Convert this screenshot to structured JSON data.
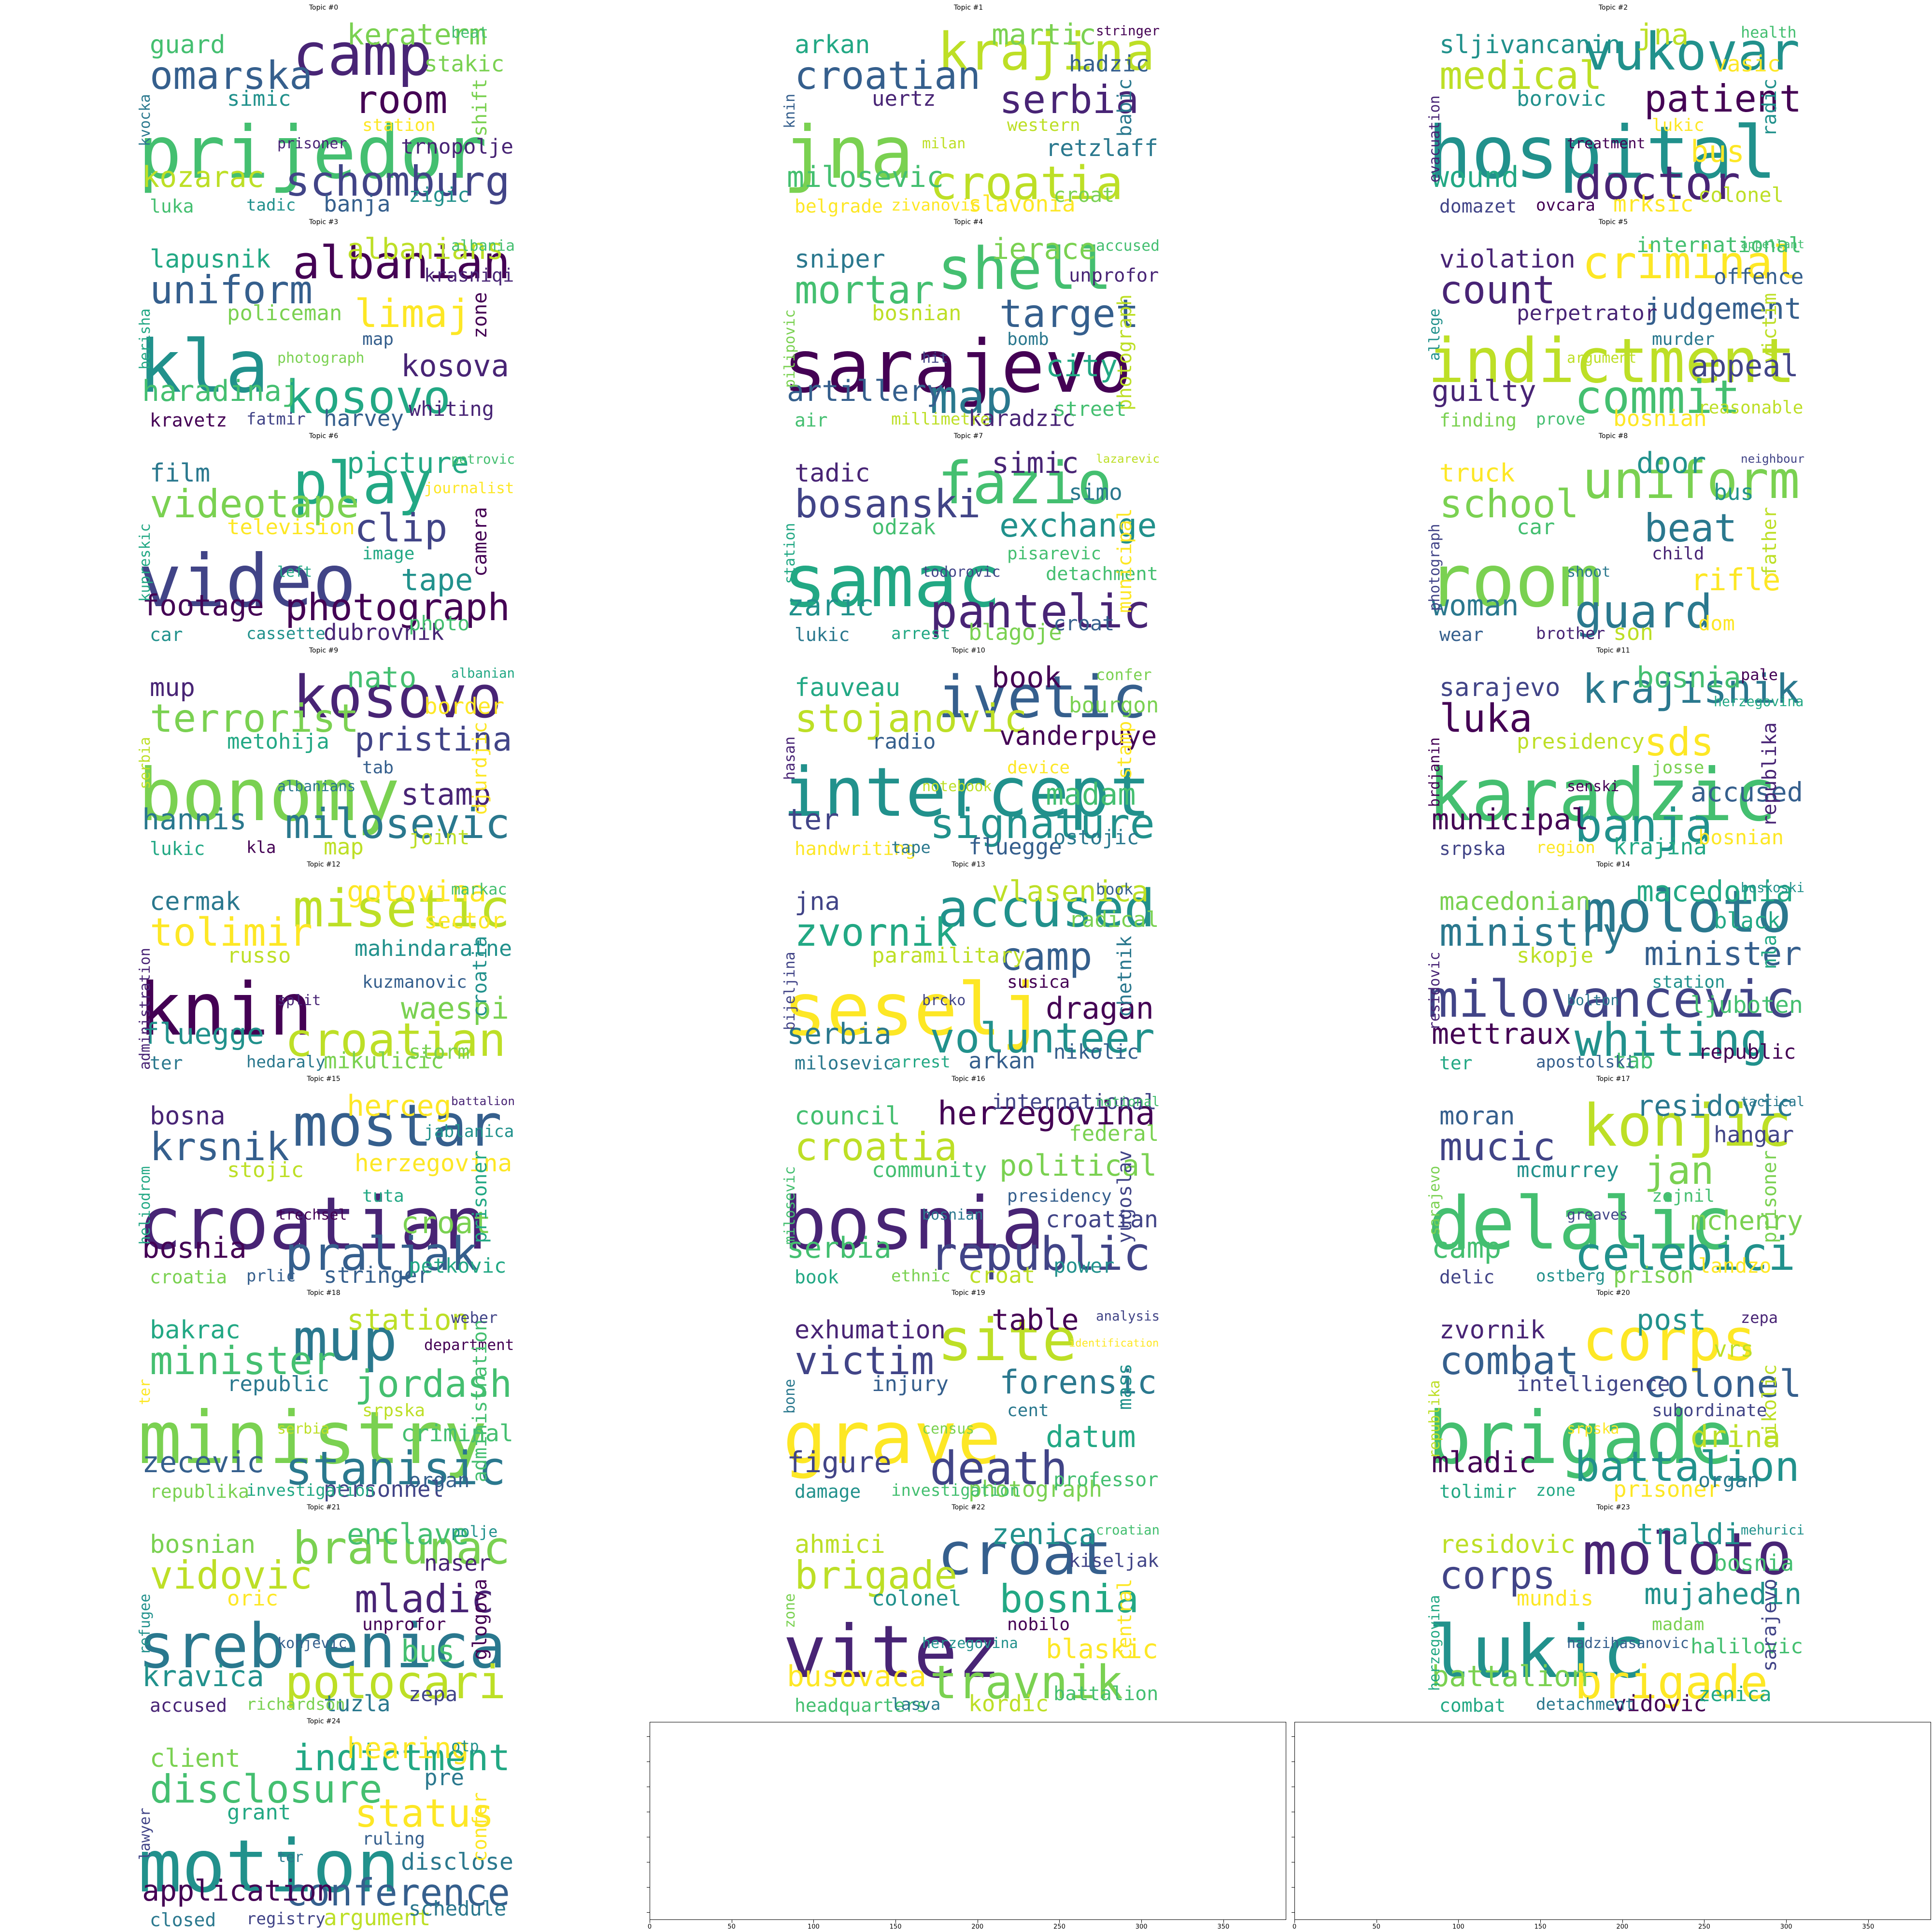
{
  "topics": [
    {
      "title": "Topic #0",
      "words": [
        "prijedor",
        "camp",
        "schomburg",
        "omarska",
        "room",
        "kozarac",
        "keraterm",
        "trnopolje",
        "guard",
        "stakic",
        "banja",
        "simic",
        "shift",
        "zigic",
        "luka",
        "station",
        "tadic",
        "kvocka",
        "beat",
        "prisoner"
      ]
    },
    {
      "title": "Topic #1",
      "words": [
        "jna",
        "krajina",
        "croatia",
        "croatian",
        "serbia",
        "milosevic",
        "martic",
        "retzlaff",
        "arkan",
        "hadzic",
        "slavonia",
        "uertz",
        "babic",
        "croat",
        "belgrade",
        "western",
        "zivanovic",
        "knin",
        "stringer",
        "milan"
      ]
    },
    {
      "title": "Topic #2",
      "words": [
        "hospital",
        "vukovar",
        "doctor",
        "medical",
        "patient",
        "wound",
        "jna",
        "bus",
        "sljivancanin",
        "vasic",
        "mrksic",
        "borovic",
        "radic",
        "colonel",
        "domazet",
        "lukic",
        "ovcara",
        "evacuation",
        "health",
        "treatment"
      ]
    },
    {
      "title": "Topic #3",
      "words": [
        "kla",
        "albanian",
        "kosovo",
        "uniform",
        "limaj",
        "haradinaj",
        "albanians",
        "kosova",
        "lapusnik",
        "krasniqi",
        "harvey",
        "policeman",
        "zone",
        "whiting",
        "kravetz",
        "map",
        "fatmir",
        "berisha",
        "albania",
        "photograph"
      ]
    },
    {
      "title": "Topic #4",
      "words": [
        "sarajevo",
        "shell",
        "map",
        "mortar",
        "target",
        "artillery",
        "ierace",
        "city",
        "sniper",
        "unprofor",
        "karadzic",
        "bosnian",
        "photograph",
        "street",
        "air",
        "bomb",
        "millimetre",
        "pilipovic",
        "accused",
        "hit"
      ]
    },
    {
      "title": "Topic #5",
      "words": [
        "indictment",
        "criminal",
        "commit",
        "count",
        "judgement",
        "guilty",
        "international",
        "appeal",
        "violation",
        "offence",
        "bosnian",
        "perpetrator",
        "victim",
        "reasonable",
        "finding",
        "murder",
        "prove",
        "allege",
        "appellant",
        "argument"
      ]
    },
    {
      "title": "Topic #6",
      "words": [
        "video",
        "play",
        "photograph",
        "videotape",
        "clip",
        "footage",
        "picture",
        "tape",
        "film",
        "journalist",
        "dubrovnik",
        "television",
        "camera",
        "photo",
        "car",
        "image",
        "cassette",
        "kupreskic",
        "petrovic",
        "left"
      ]
    },
    {
      "title": "Topic #7",
      "words": [
        "samac",
        "fazio",
        "pantelic",
        "bosanski",
        "exchange",
        "zaric",
        "simic",
        "detachment",
        "tadic",
        "simo",
        "blagoje",
        "odzak",
        "municipal",
        "croat",
        "lukic",
        "pisarevic",
        "arrest",
        "station",
        "lazarevic",
        "todorovic"
      ]
    },
    {
      "title": "Topic #8",
      "words": [
        "room",
        "uniform",
        "guard",
        "school",
        "beat",
        "woman",
        "door",
        "rifle",
        "truck",
        "bus",
        "son",
        "car",
        "father",
        "dom",
        "wear",
        "child",
        "brother",
        "photograph",
        "neighbour",
        "shoot"
      ]
    },
    {
      "title": "Topic #9",
      "words": [
        "bonomy",
        "kosovo",
        "milosevic",
        "terrorist",
        "pristina",
        "hannis",
        "nato",
        "stamp",
        "mup",
        "border",
        "map",
        "metohija",
        "djurdjic",
        "joint",
        "lukic",
        "tab",
        "kla",
        "serbia",
        "albanian",
        "albanians"
      ]
    },
    {
      "title": "Topic #10",
      "words": [
        "intercept",
        "ivetic",
        "signature",
        "stojanovic",
        "vanderpuye",
        "ter",
        "book",
        "madam",
        "fauveau",
        "bourgon",
        "fluegge",
        "radio",
        "stamp",
        "ostojic",
        "handwriting",
        "device",
        "tape",
        "hasan",
        "confer",
        "notebook"
      ]
    },
    {
      "title": "Topic #11",
      "words": [
        "karadzic",
        "krajisnik",
        "banja",
        "luka",
        "sds",
        "municipal",
        "bosnia",
        "accused",
        "sarajevo",
        "herzegovina",
        "krajina",
        "presidency",
        "republika",
        "bosnian",
        "srpska",
        "josse",
        "region",
        "brdjanin",
        "pale",
        "senski"
      ]
    },
    {
      "title": "Topic #12",
      "words": [
        "knin",
        "misetic",
        "croatian",
        "tolimir",
        "mahindaratne",
        "fluegge",
        "gotovina",
        "waespi",
        "cermak",
        "sector",
        "mikulicic",
        "russo",
        "croatia",
        "storm",
        "ter",
        "kuzmanovic",
        "hedaraly",
        "administration",
        "markac",
        "split"
      ]
    },
    {
      "title": "Topic #13",
      "words": [
        "seselj",
        "accused",
        "volunteer",
        "zvornik",
        "camp",
        "serbia",
        "vlasenica",
        "dragan",
        "jna",
        "radical",
        "arkan",
        "paramilitary",
        "chetnik",
        "nikolic",
        "milosevic",
        "susica",
        "arrest",
        "bijeljina",
        "book",
        "brcko"
      ]
    },
    {
      "title": "Topic #14",
      "words": [
        "milovancevic",
        "moloto",
        "whiting",
        "ministry",
        "minister",
        "mettraux",
        "macedonia",
        "ljuboten",
        "macedonian",
        "black",
        "tab",
        "skopje",
        "nla",
        "republic",
        "ter",
        "station",
        "apostolski",
        "residovic",
        "boskoski",
        "bolton"
      ]
    },
    {
      "title": "Topic #15",
      "words": [
        "croatian",
        "mostar",
        "praljak",
        "krsnik",
        "herzegovina",
        "bosnia",
        "herceg",
        "croat",
        "bosna",
        "jablanica",
        "stringer",
        "stojic",
        "prisoner",
        "petkovic",
        "croatia",
        "tuta",
        "prlic",
        "heliodrom",
        "battalion",
        "trechsel"
      ]
    },
    {
      "title": "Topic #16",
      "words": [
        "bosnia",
        "herzegovina",
        "republic",
        "croatia",
        "political",
        "serbia",
        "international",
        "croatian",
        "council",
        "federal",
        "croat",
        "community",
        "yugoslav",
        "power",
        "book",
        "presidency",
        "ethnic",
        "milosevic",
        "national",
        "bosnian"
      ]
    },
    {
      "title": "Topic #17",
      "words": [
        "delalic",
        "konjic",
        "celebici",
        "mucic",
        "jan",
        "camp",
        "residovic",
        "mchenry",
        "moran",
        "hangar",
        "prison",
        "mcmurrey",
        "prisoner",
        "landzo",
        "delic",
        "zejnil",
        "ostberg",
        "sarajevo",
        "tactical",
        "greaves"
      ]
    },
    {
      "title": "Topic #18",
      "words": [
        "ministry",
        "mup",
        "stanisic",
        "minister",
        "jordash",
        "zecevic",
        "station",
        "criminal",
        "bakrac",
        "department",
        "personnel",
        "republic",
        "administration",
        "organ",
        "republika",
        "srpska",
        "investigation",
        "ter",
        "weber",
        "serbia"
      ]
    },
    {
      "title": "Topic #19",
      "words": [
        "grave",
        "site",
        "death",
        "victim",
        "forensic",
        "figure",
        "table",
        "datum",
        "exhumation",
        "identification",
        "photograph",
        "injury",
        "mass",
        "professor",
        "damage",
        "cent",
        "investigation",
        "bone",
        "analysis",
        "census"
      ]
    },
    {
      "title": "Topic #20",
      "words": [
        "brigade",
        "corps",
        "battalion",
        "combat",
        "colonel",
        "mladic",
        "post",
        "drina",
        "zvornik",
        "vrs",
        "prisoner",
        "intelligence",
        "nikolic",
        "organ",
        "tolimir",
        "subordinate",
        "zone",
        "republika",
        "zepa",
        "srpska"
      ]
    },
    {
      "title": "Topic #21",
      "words": [
        "srebrenica",
        "bratunac",
        "potocari",
        "vidovic",
        "mladic",
        "kravica",
        "enclave",
        "bus",
        "bosnian",
        "naser",
        "tuzla",
        "oric",
        "glogova",
        "zepa",
        "accused",
        "unprofor",
        "richardson",
        "refugee",
        "polje",
        "konjevic"
      ]
    },
    {
      "title": "Topic #22",
      "words": [
        "vitez",
        "croat",
        "travnik",
        "brigade",
        "bosnia",
        "busovaca",
        "zenica",
        "blaskic",
        "ahmici",
        "kiseljak",
        "kordic",
        "colonel",
        "central",
        "battalion",
        "headquarters",
        "nobilo",
        "lasva",
        "zone",
        "croatian",
        "herzegovina"
      ]
    },
    {
      "title": "Topic #23",
      "words": [
        "lukic",
        "moloto",
        "brigade",
        "corps",
        "mujahedin",
        "battalion",
        "traldi",
        "halilovic",
        "residovic",
        "bosnia",
        "vidovic",
        "mundis",
        "sarajevo",
        "zenica",
        "combat",
        "madam",
        "detachment",
        "herzegovina",
        "mehurici",
        "hadzihasanovic"
      ]
    },
    {
      "title": "Topic #24",
      "words": [
        "motion",
        "indictment",
        "conference",
        "disclosure",
        "status",
        "application",
        "hearing",
        "disclose",
        "client",
        "pre",
        "argument",
        "grant",
        "confer",
        "schedule",
        "closed",
        "ruling",
        "registry",
        "lawyer",
        "otp",
        "ter"
      ]
    }
  ],
  "empty_axes": [
    {
      "xticks": [
        "0",
        "50",
        "100",
        "150",
        "200",
        "250",
        "300",
        "350"
      ]
    },
    {
      "xticks": [
        "0",
        "50",
        "100",
        "150",
        "200",
        "250",
        "300",
        "350"
      ]
    }
  ],
  "palette": [
    "#440154",
    "#482475",
    "#414487",
    "#355f8d",
    "#2a788e",
    "#21918c",
    "#22a884",
    "#44bf70",
    "#7ad151",
    "#bddf26",
    "#fde725"
  ]
}
